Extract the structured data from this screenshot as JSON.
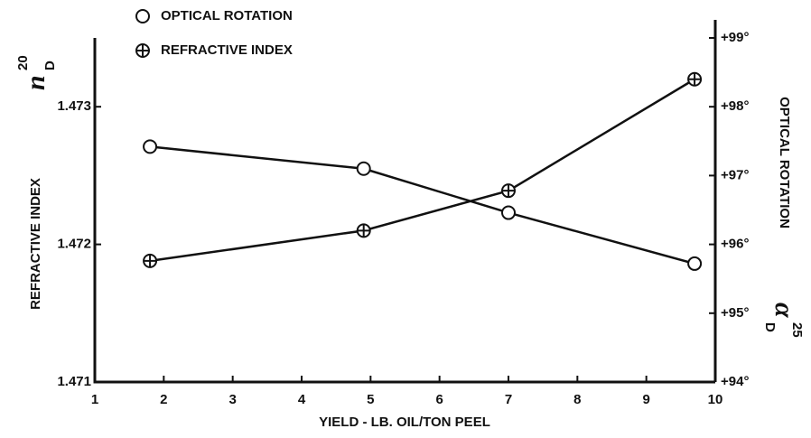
{
  "chart_data": {
    "type": "line",
    "x_label": "YIELD - LB. OIL/TON PEEL",
    "y_label": "REFRACTIVE INDEX",
    "y_symbol": {
      "base": "n",
      "sup": "20",
      "sub": "D"
    },
    "y2_label": "OPTICAL ROTATION",
    "y2_symbol": {
      "base": "α",
      "sup": "25",
      "sub": "D"
    },
    "x": [
      1.8,
      4.9,
      7,
      9.7
    ],
    "xlim": [
      1,
      10
    ],
    "xticks": [
      1,
      2,
      3,
      4,
      5,
      6,
      7,
      8,
      9,
      10
    ],
    "ylim": [
      1.471,
      1.4735
    ],
    "yticks": [
      1.471,
      1.472,
      1.473
    ],
    "y2lim": [
      94,
      99
    ],
    "y2ticks": [
      {
        "value": 94,
        "label": "+94°"
      },
      {
        "value": 95,
        "label": "+95°"
      },
      {
        "value": 96,
        "label": "+96°"
      },
      {
        "value": 97,
        "label": "+97°"
      },
      {
        "value": 98,
        "label": "+98°"
      },
      {
        "value": 99,
        "label": "+99°"
      }
    ],
    "legend": "top-left",
    "series": [
      {
        "name": "OPTICAL ROTATION",
        "color": "#111111",
        "marker": "circle",
        "axis": "y2",
        "values": [
          97.42,
          97.1,
          96.46,
          95.72
        ]
      },
      {
        "name": "REFRACTIVE INDEX",
        "color": "#111111",
        "marker": "crossed-circle",
        "axis": "y",
        "values": [
          1.47188,
          1.4721,
          1.47239,
          1.4732
        ]
      }
    ]
  }
}
